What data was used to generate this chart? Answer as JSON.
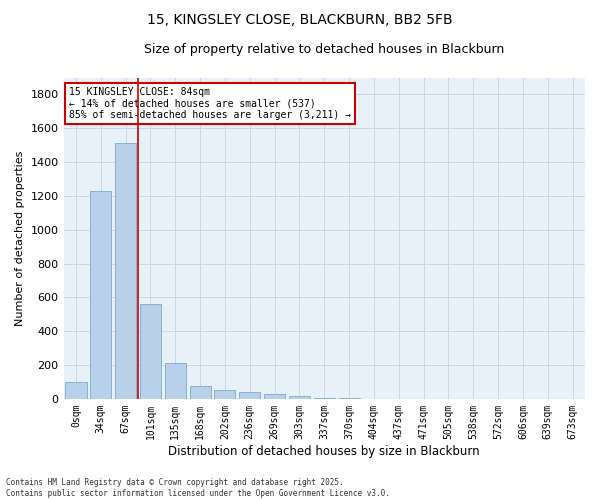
{
  "title1": "15, KINGSLEY CLOSE, BLACKBURN, BB2 5FB",
  "title2": "Size of property relative to detached houses in Blackburn",
  "xlabel": "Distribution of detached houses by size in Blackburn",
  "ylabel": "Number of detached properties",
  "categories": [
    "0sqm",
    "34sqm",
    "67sqm",
    "101sqm",
    "135sqm",
    "168sqm",
    "202sqm",
    "236sqm",
    "269sqm",
    "303sqm",
    "337sqm",
    "370sqm",
    "404sqm",
    "437sqm",
    "471sqm",
    "505sqm",
    "538sqm",
    "572sqm",
    "606sqm",
    "639sqm",
    "673sqm"
  ],
  "values": [
    100,
    1230,
    1510,
    560,
    210,
    75,
    50,
    40,
    28,
    15,
    5,
    2,
    0,
    0,
    0,
    0,
    0,
    0,
    0,
    0,
    0
  ],
  "bar_color": "#b8d0e8",
  "bar_edge_color": "#6aa0cc",
  "vline_x": 2.5,
  "vline_color": "#cc0000",
  "annotation_text": "15 KINGSLEY CLOSE: 84sqm\n← 14% of detached houses are smaller (537)\n85% of semi-detached houses are larger (3,211) →",
  "annotation_box_color": "#cc0000",
  "annotation_bg": "#ffffff",
  "ylim": [
    0,
    1900
  ],
  "yticks": [
    0,
    200,
    400,
    600,
    800,
    1000,
    1200,
    1400,
    1600,
    1800
  ],
  "grid_color": "#c8d8ea",
  "bg_color": "#e8f0f8",
  "footer1": "Contains HM Land Registry data © Crown copyright and database right 2025.",
  "footer2": "Contains public sector information licensed under the Open Government Licence v3.0.",
  "title_fontsize": 10,
  "subtitle_fontsize": 9,
  "tick_fontsize": 7,
  "ylabel_fontsize": 8,
  "xlabel_fontsize": 8.5,
  "annot_fontsize": 7,
  "footer_fontsize": 5.5
}
